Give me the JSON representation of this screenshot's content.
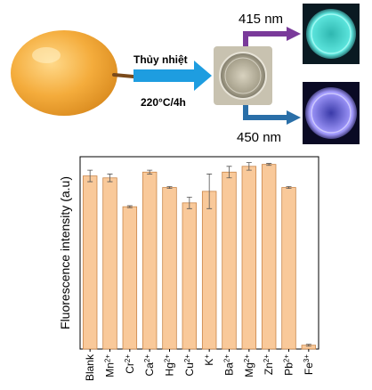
{
  "process": {
    "method_label": "Thủy nhiệt",
    "condition_label": "220°C/4h",
    "emission_top": "415 nm",
    "emission_bottom": "450 nm"
  },
  "colors": {
    "fruit": "#f2a83a",
    "bar_fill": "#f9c99a",
    "bar_stroke": "#c9864a",
    "arrow_blue": "#1e9de0",
    "arrow_purple": "#7a3a9a",
    "arrow_steel": "#2a6fa8",
    "glow_cyan": "#5fe8e0",
    "glow_violet": "#9a86ff"
  },
  "chart_data": {
    "type": "bar",
    "title": "",
    "xlabel": "",
    "ylabel": "Fluorescence intensity (a.u)",
    "ylim": [
      0,
      1
    ],
    "grid": false,
    "categories": [
      {
        "base": "Blank",
        "sup": ""
      },
      {
        "base": "Mn",
        "sup": "2+"
      },
      {
        "base": "Cr",
        "sup": "2+"
      },
      {
        "base": "Ca",
        "sup": "2+"
      },
      {
        "base": "Hg",
        "sup": "2+"
      },
      {
        "base": "Cu",
        "sup": "2+"
      },
      {
        "base": "K",
        "sup": "+"
      },
      {
        "base": "Ba",
        "sup": "2+"
      },
      {
        "base": "Mg",
        "sup": "2+"
      },
      {
        "base": "Zn",
        "sup": "2+"
      },
      {
        "base": "Pb",
        "sup": "2+"
      },
      {
        "base": "Fe",
        "sup": "3+"
      }
    ],
    "values": [
      0.9,
      0.89,
      0.74,
      0.92,
      0.84,
      0.76,
      0.82,
      0.92,
      0.95,
      0.96,
      0.84,
      0.02
    ],
    "errors": [
      0.03,
      0.02,
      0.005,
      0.01,
      0.005,
      0.03,
      0.09,
      0.03,
      0.02,
      0.005,
      0.005,
      0.005
    ]
  }
}
